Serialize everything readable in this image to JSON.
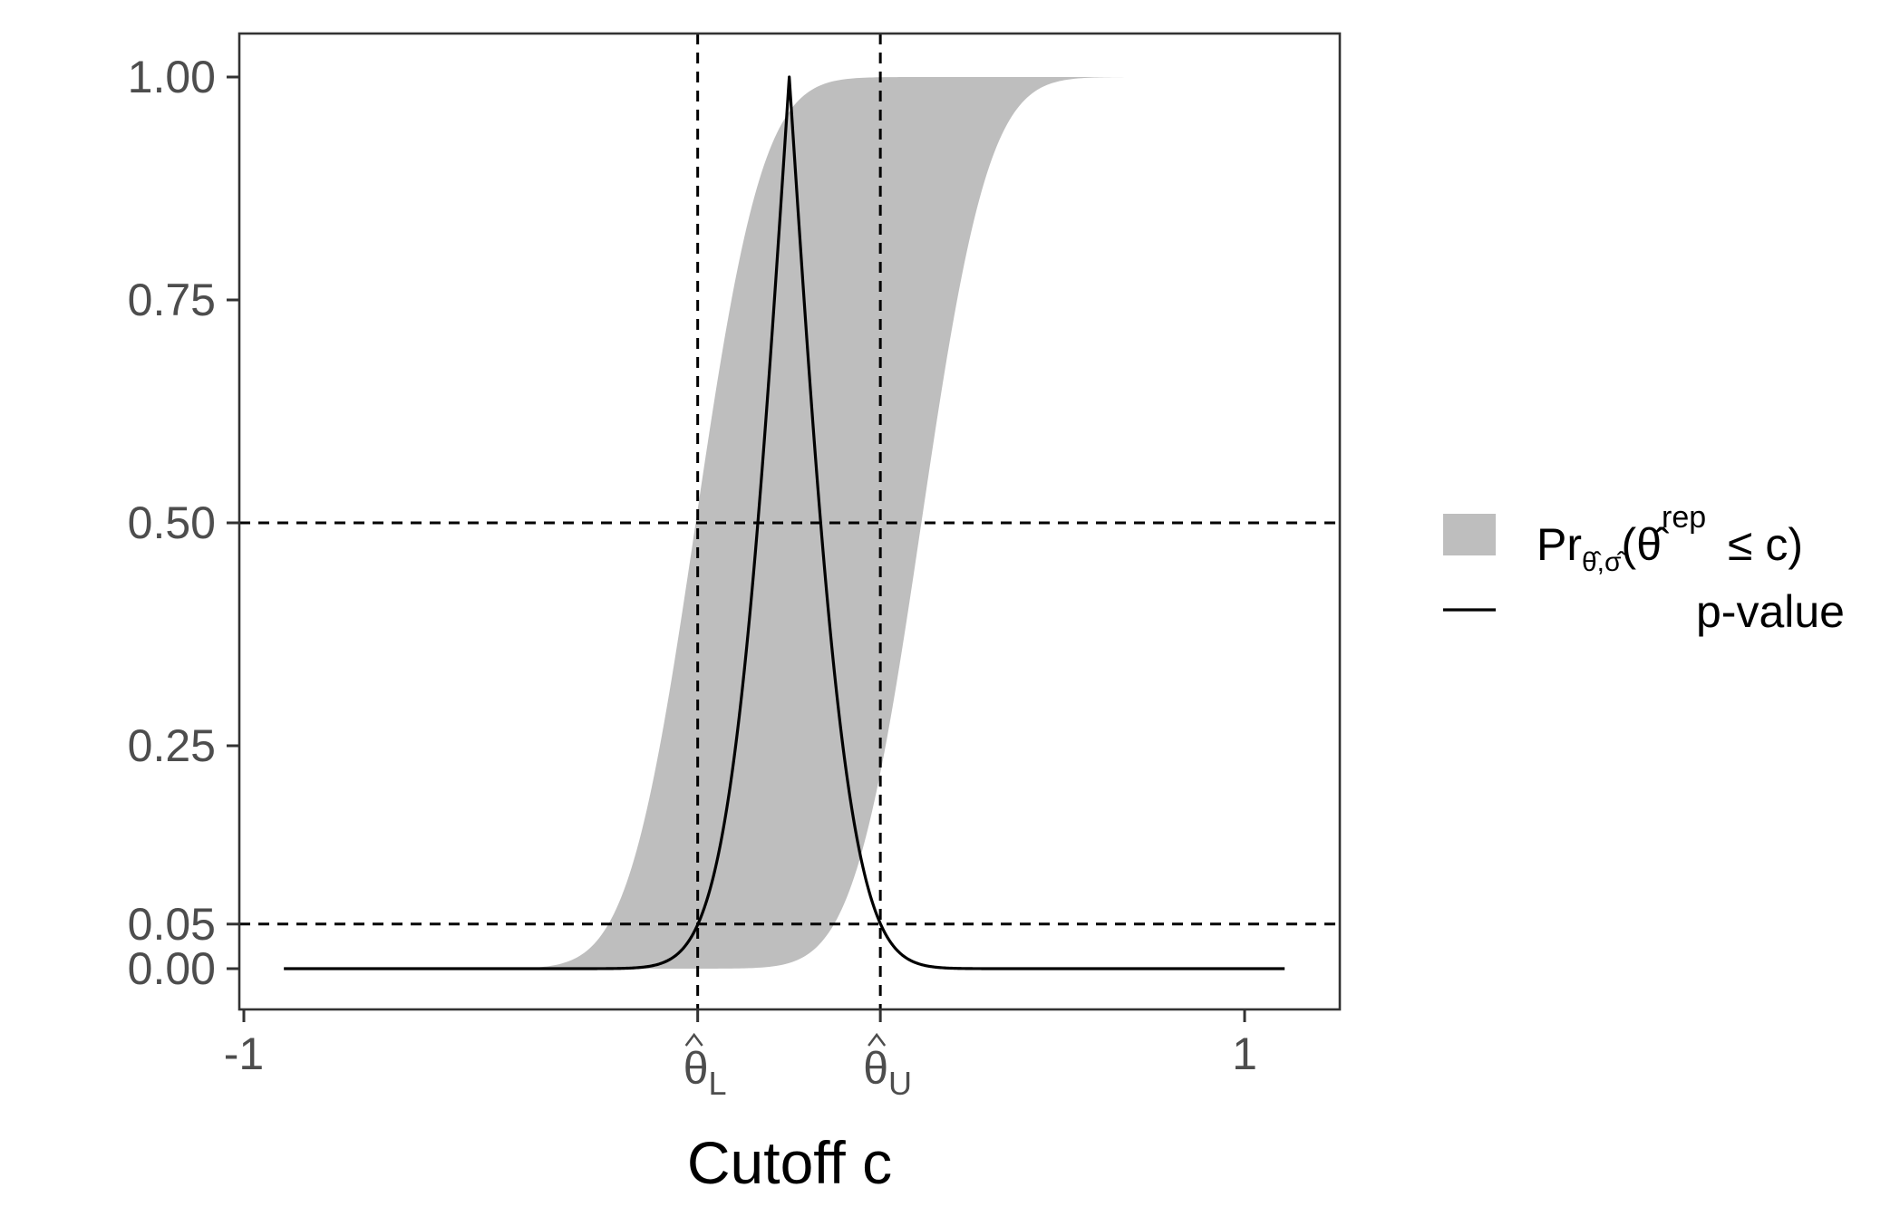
{
  "chart_data": {
    "type": "area",
    "title": "",
    "xlabel": "Cutoff c",
    "ylabel": "",
    "xlim": [
      -1.0,
      1.1
    ],
    "ylim": [
      -0.1,
      2.09
    ],
    "grid": false,
    "legend_position": "right",
    "x_ticks": [
      {
        "value": -1,
        "label": "-1"
      },
      {
        "value": 1,
        "label": "1"
      }
    ],
    "y_ticks": [
      {
        "value": 0.0,
        "label": "0.00"
      },
      {
        "value": 0.05,
        "label": "0.05"
      },
      {
        "value": 0.25,
        "label": "0.25"
      },
      {
        "value": 0.5,
        "label": "0.50"
      },
      {
        "value": 0.75,
        "label": "0.75"
      },
      {
        "value": 1.0,
        "label": "1.00"
      }
    ],
    "reference_lines": {
      "vertical": [
        {
          "value": -0.093,
          "label_base": "θ",
          "label_sub": "L"
        },
        {
          "value": 0.272,
          "label_base": "θ",
          "label_sub": "U"
        }
      ],
      "horizontal": [
        0.05,
        0.5
      ]
    },
    "band": {
      "name": "Pr(θ̂rep ≤ c)",
      "x_range": [
        -0.92,
        1.08
      ],
      "lower_center": 0.354,
      "upper_center": -0.097,
      "sd": 0.106,
      "color": "#bebebe"
    },
    "pvalue": {
      "name": "p-value",
      "x_range": [
        -0.92,
        1.08
      ],
      "peak_x": 0.09,
      "peak_y": 1.0,
      "sd": 0.0931,
      "color": "#000000"
    },
    "legend": {
      "entries": [
        {
          "id": "band",
          "prefix": "Pr",
          "sub": "θ̂,σ̂",
          "open": "(",
          "theta": "θ̂",
          "sup": "rep",
          "rest": " ≤ c)"
        },
        {
          "id": "line",
          "label": "p-value"
        }
      ]
    }
  }
}
